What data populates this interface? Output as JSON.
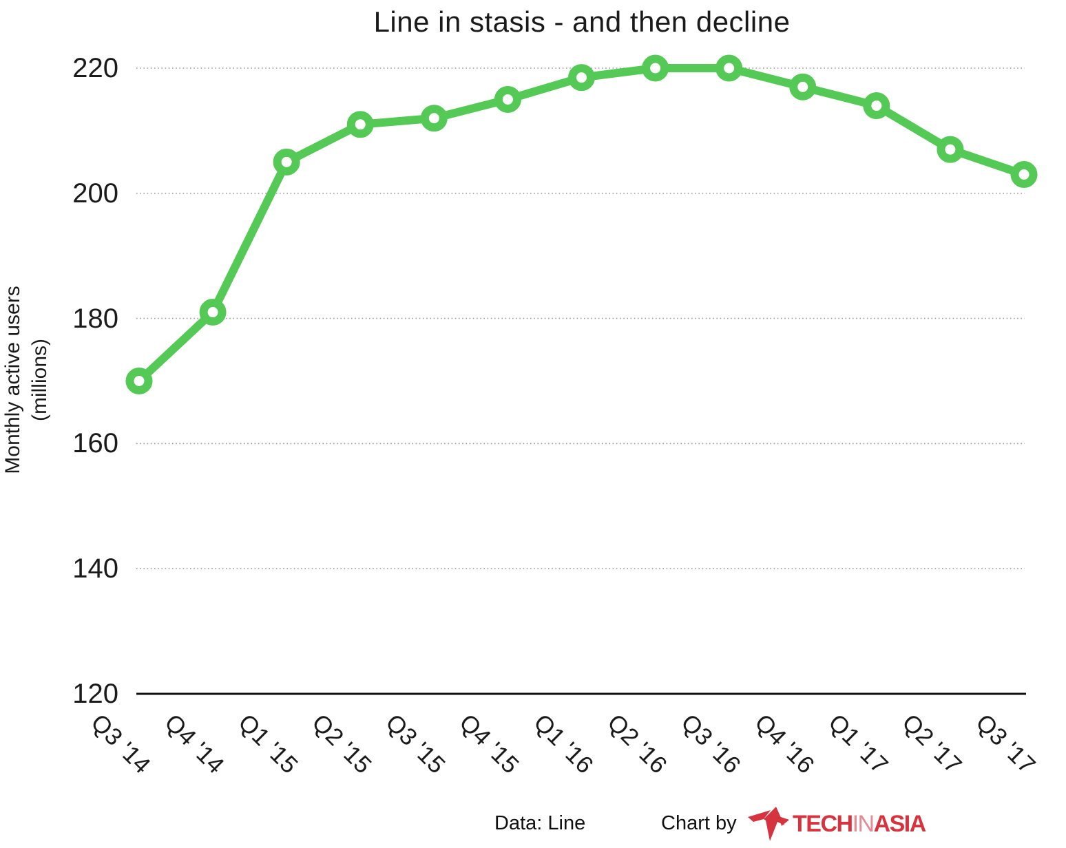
{
  "title": "Line in stasis - and then decline",
  "y_axis": {
    "label_line1": "Monthly active users",
    "label_line2": "(millions)"
  },
  "footer": {
    "data_source": "Data: Line",
    "chart_by": "Chart by",
    "logo": {
      "name": "techinasia-logo",
      "text_parts": [
        "TECH",
        "IN",
        "ASIA"
      ]
    }
  },
  "colors": {
    "line": "#55c955",
    "marker_fill": "#ffffff",
    "grid": "#999999",
    "axis": "#111111",
    "text": "#1a1a1a",
    "logo_red": "#d5333e",
    "logo_red_light": "#e48b93"
  },
  "chart_data": {
    "type": "line",
    "title": "Line in stasis - and then decline",
    "series_name": "Line monthly active users",
    "categories": [
      "Q3 '14",
      "Q4 '14",
      "Q1 '15",
      "Q2 '15",
      "Q3 '15",
      "Q4 '15",
      "Q1 '16",
      "Q2 '16",
      "Q3 '16",
      "Q4 '16",
      "Q1 '17",
      "Q2 '17",
      "Q3 '17"
    ],
    "values": [
      170,
      181,
      205,
      211,
      212,
      215,
      218.5,
      220,
      220,
      217,
      214,
      207,
      203
    ],
    "xlabel": "",
    "ylabel": "Monthly active users (millions)",
    "ylim": [
      120,
      220
    ],
    "yticks": [
      120,
      140,
      160,
      180,
      200,
      220
    ],
    "grid": "horizontal-dotted",
    "legend": "none",
    "marker": "open-circle"
  }
}
